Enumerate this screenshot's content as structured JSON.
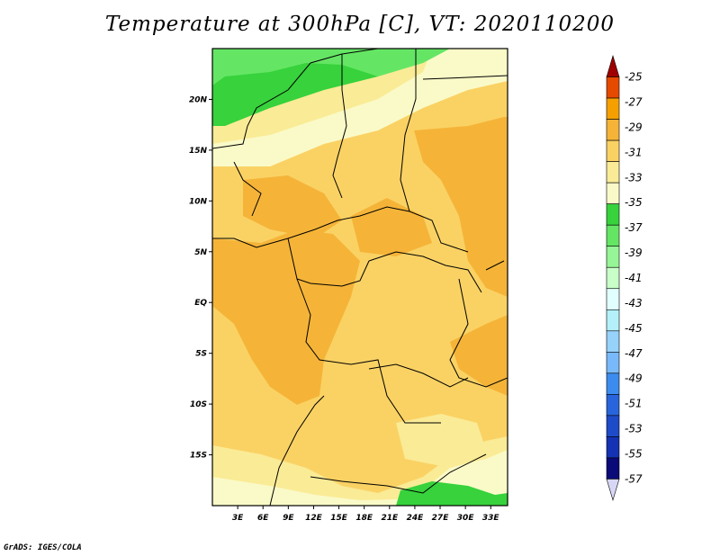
{
  "title": "Temperature at 300hPa [C], VT: 2020110200",
  "footer": "GrADS: IGES/COLA",
  "map": {
    "lat_labels": [
      "20N",
      "15N",
      "10N",
      "5N",
      "EQ",
      "5S",
      "10S",
      "15S"
    ],
    "lat_values": [
      20,
      15,
      10,
      5,
      0,
      -5,
      -10,
      -15
    ],
    "lon_labels": [
      "3E",
      "6E",
      "9E",
      "12E",
      "15E",
      "18E",
      "21E",
      "24E",
      "27E",
      "30E",
      "33E"
    ],
    "lon_values": [
      3,
      6,
      9,
      12,
      15,
      18,
      21,
      24,
      27,
      30,
      33
    ],
    "lat_range": [
      -20,
      25
    ],
    "lon_range": [
      0,
      35
    ]
  },
  "legend": {
    "labels": [
      "-25",
      "-27",
      "-29",
      "-31",
      "-33",
      "-35",
      "-37",
      "-39",
      "-41",
      "-43",
      "-45",
      "-47",
      "-49",
      "-51",
      "-53",
      "-55",
      "-57"
    ],
    "colors": [
      "#a00000",
      "#e64a00",
      "#f5a000",
      "#f5b438",
      "#fad264",
      "#faeb96",
      "#fafac8",
      "#37d23c",
      "#64e664",
      "#96f596",
      "#c8ffc8",
      "#e1ffff",
      "#b4f0fa",
      "#96d2fa",
      "#78b9fa",
      "#3c8cf0",
      "#2864dc",
      "#1e4bc8",
      "#1432b4",
      "#0a0a78",
      "#d7d7f5"
    ]
  },
  "colors": {
    "warm": "#f5b438",
    "mid": "#fad264",
    "cool": "#faeb96",
    "pale": "#fafac8",
    "green": "#37d23c",
    "lightgreen": "#64e664",
    "border": "#000000"
  }
}
